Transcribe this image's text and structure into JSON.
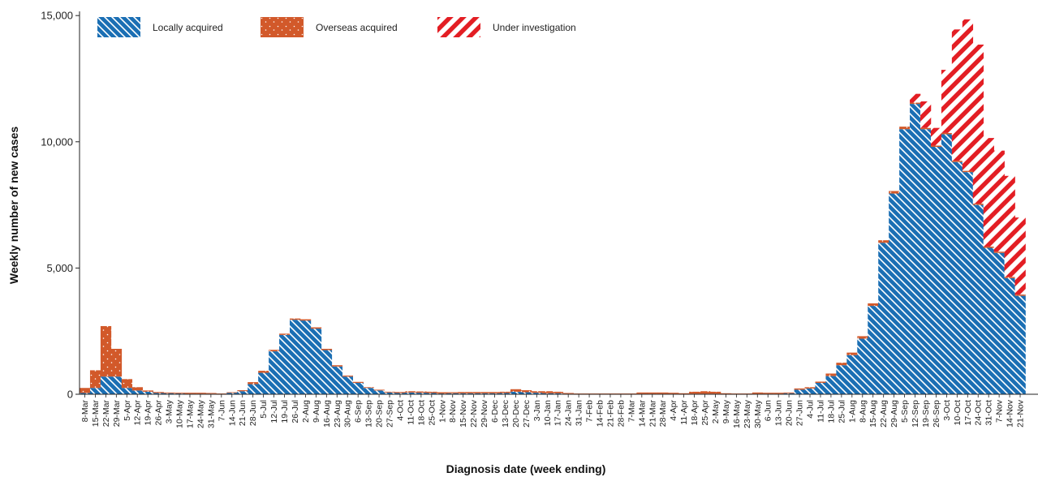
{
  "chart_data": {
    "type": "bar",
    "stacked": true,
    "xlabel": "Diagnosis date (week ending)",
    "ylabel": "Weekly number of new cases",
    "ylim": [
      0,
      15600
    ],
    "yticks": [
      0,
      5000,
      10000,
      15000
    ],
    "ytick_labels": [
      "0",
      "5,000",
      "10,000",
      "15,000"
    ],
    "grid": false,
    "legend_position": "top-left",
    "colors": {
      "locally_acquired": "#1b6fb4",
      "overseas_acquired": "#d2592a",
      "under_investigation": "#e31e24"
    },
    "categories": [
      "8-Mar",
      "15-Mar",
      "22-Mar",
      "29-Mar",
      "5-Apr",
      "12-Apr",
      "19-Apr",
      "26-Apr",
      "3-May",
      "10-May",
      "17-May",
      "24-May",
      "31-May",
      "7-Jun",
      "14-Jun",
      "21-Jun",
      "28-Jun",
      "5-Jul",
      "12-Jul",
      "19-Jul",
      "26-Jul",
      "2-Aug",
      "9-Aug",
      "16-Aug",
      "23-Aug",
      "30-Aug",
      "6-Sep",
      "13-Sep",
      "20-Sep",
      "27-Sep",
      "4-Oct",
      "11-Oct",
      "18-Oct",
      "25-Oct",
      "1-Nov",
      "8-Nov",
      "15-Nov",
      "22-Nov",
      "29-Nov",
      "6-Dec",
      "13-Dec",
      "20-Dec",
      "27-Dec",
      "3-Jan",
      "10-Jan",
      "17-Jan",
      "24-Jan",
      "31-Jan",
      "7-Feb",
      "14-Feb",
      "21-Feb",
      "28-Feb",
      "7-Mar",
      "14-Mar",
      "21-Mar",
      "28-Mar",
      "4-Apr",
      "11-Apr",
      "18-Apr",
      "25-Apr",
      "2-May",
      "9-May",
      "16-May",
      "23-May",
      "30-May",
      "6-Jun",
      "13-Jun",
      "20-Jun",
      "27-Jun",
      "4-Jul",
      "11-Jul",
      "18-Jul",
      "25-Jul",
      "1-Aug",
      "8-Aug",
      "15-Aug",
      "22-Aug",
      "29-Aug",
      "5-Sep",
      "12-Sep",
      "19-Sep",
      "26-Sep",
      "3-Oct",
      "10-Oct",
      "17-Oct",
      "24-Oct",
      "31-Oct",
      "7-Nov",
      "14-Nov",
      "21-Nov"
    ],
    "series": [
      {
        "name": "Locally acquired",
        "values": [
          50,
          250,
          700,
          700,
          250,
          150,
          100,
          50,
          40,
          30,
          20,
          20,
          20,
          10,
          60,
          120,
          400,
          850,
          1700,
          2350,
          2950,
          2920,
          2600,
          1750,
          1100,
          700,
          450,
          250,
          150,
          70,
          50,
          70,
          60,
          50,
          30,
          40,
          40,
          40,
          40,
          40,
          50,
          100,
          80,
          60,
          40,
          40,
          20,
          10,
          10,
          10,
          10,
          10,
          10,
          20,
          20,
          20,
          20,
          10,
          20,
          20,
          20,
          10,
          10,
          10,
          20,
          20,
          20,
          40,
          180,
          230,
          450,
          720,
          1150,
          1550,
          2200,
          3500,
          6000,
          7950,
          10500,
          11500,
          10500,
          9800,
          10300,
          9200,
          8800,
          7500,
          5800,
          5600,
          4600,
          3900
        ]
      },
      {
        "name": "Overseas acquired",
        "values": [
          200,
          700,
          2000,
          1100,
          350,
          130,
          50,
          40,
          30,
          30,
          40,
          40,
          30,
          20,
          20,
          40,
          80,
          80,
          60,
          50,
          50,
          50,
          50,
          50,
          50,
          40,
          40,
          30,
          30,
          30,
          40,
          50,
          50,
          50,
          50,
          40,
          50,
          50,
          50,
          50,
          50,
          100,
          80,
          60,
          80,
          60,
          30,
          20,
          20,
          20,
          20,
          20,
          20,
          50,
          50,
          50,
          40,
          30,
          80,
          100,
          80,
          30,
          20,
          20,
          50,
          40,
          40,
          30,
          50,
          50,
          50,
          100,
          100,
          100,
          100,
          100,
          100,
          100,
          100,
          50,
          50,
          50,
          50,
          50,
          50,
          50,
          50,
          50,
          50,
          50
        ]
      },
      {
        "name": "Under investigation",
        "values": [
          0,
          0,
          0,
          0,
          0,
          0,
          0,
          0,
          0,
          0,
          0,
          0,
          0,
          0,
          0,
          0,
          0,
          0,
          0,
          0,
          0,
          0,
          0,
          0,
          0,
          0,
          0,
          0,
          0,
          0,
          0,
          0,
          0,
          0,
          0,
          0,
          0,
          0,
          0,
          0,
          0,
          0,
          0,
          0,
          0,
          0,
          0,
          0,
          0,
          0,
          0,
          0,
          0,
          0,
          0,
          0,
          0,
          0,
          0,
          0,
          0,
          0,
          0,
          0,
          0,
          0,
          0,
          0,
          0,
          0,
          0,
          0,
          0,
          0,
          0,
          0,
          0,
          0,
          0,
          350,
          1050,
          700,
          2500,
          5200,
          6000,
          6300,
          4300,
          4000,
          4000,
          3050
        ]
      }
    ]
  }
}
